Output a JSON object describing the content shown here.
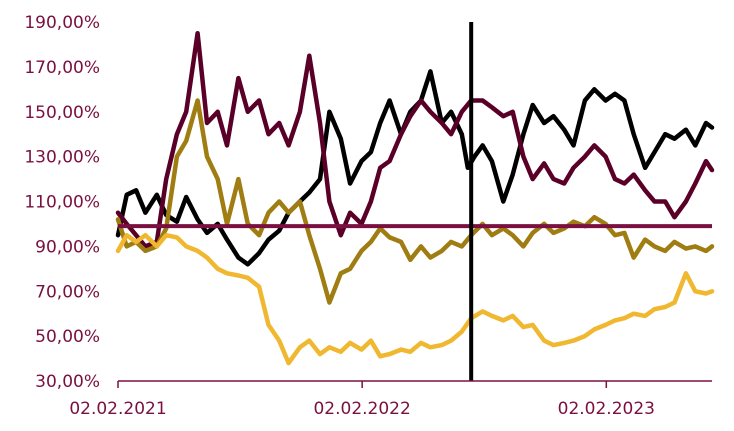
{
  "chart_data": {
    "type": "line",
    "title": "",
    "xlabel": "",
    "ylabel": "",
    "x_range": [
      "2021-02-02",
      "2023-07-10"
    ],
    "ylim": [
      30,
      190
    ],
    "y_ticks": [
      {
        "value": 190,
        "label": "190,00%"
      },
      {
        "value": 170,
        "label": "170,00%"
      },
      {
        "value": 150,
        "label": "150,00%"
      },
      {
        "value": 130,
        "label": "130,00%"
      },
      {
        "value": 110,
        "label": "110,00%"
      },
      {
        "value": 90,
        "label": "90,00%"
      },
      {
        "value": 70,
        "label": "70,00%"
      },
      {
        "value": 50,
        "label": "50,00%"
      },
      {
        "value": 30,
        "label": "30,00%"
      }
    ],
    "x_ticks": [
      {
        "date": "2021-02-02",
        "label": "02.02.2021"
      },
      {
        "date": "2022-02-02",
        "label": "02.02.2022"
      },
      {
        "date": "2023-02-02",
        "label": "02.02.2023"
      }
    ],
    "reference_lines": [
      {
        "orientation": "horizontal",
        "value": 99,
        "color": "#7a1040"
      },
      {
        "orientation": "vertical",
        "date": "2022-07-15",
        "color": "#000000"
      }
    ],
    "grid": false,
    "legend": "none",
    "series": [
      {
        "color": "#000000",
        "points": [
          [
            "2021-02-02",
            95
          ],
          [
            "2021-02-15",
            113
          ],
          [
            "2021-03-01",
            115
          ],
          [
            "2021-03-15",
            105
          ],
          [
            "2021-04-01",
            113
          ],
          [
            "2021-04-15",
            104
          ],
          [
            "2021-05-01",
            101
          ],
          [
            "2021-05-15",
            112
          ],
          [
            "2021-06-01",
            102
          ],
          [
            "2021-06-15",
            96
          ],
          [
            "2021-07-01",
            100
          ],
          [
            "2021-07-15",
            93
          ],
          [
            "2021-08-01",
            85
          ],
          [
            "2021-08-15",
            82
          ],
          [
            "2021-09-01",
            87
          ],
          [
            "2021-09-15",
            93
          ],
          [
            "2021-10-01",
            97
          ],
          [
            "2021-10-15",
            105
          ],
          [
            "2021-11-01",
            110
          ],
          [
            "2021-11-15",
            114
          ],
          [
            "2021-12-01",
            120
          ],
          [
            "2021-12-15",
            150
          ],
          [
            "2022-01-01",
            138
          ],
          [
            "2022-01-15",
            118
          ],
          [
            "2022-02-01",
            128
          ],
          [
            "2022-02-15",
            132
          ],
          [
            "2022-03-01",
            145
          ],
          [
            "2022-03-15",
            155
          ],
          [
            "2022-04-01",
            140
          ],
          [
            "2022-04-15",
            150
          ],
          [
            "2022-05-01",
            155
          ],
          [
            "2022-05-15",
            168
          ],
          [
            "2022-06-01",
            145
          ],
          [
            "2022-06-15",
            150
          ],
          [
            "2022-07-01",
            140
          ],
          [
            "2022-07-10",
            125
          ],
          [
            "2022-07-20",
            130
          ],
          [
            "2022-08-01",
            135
          ],
          [
            "2022-08-15",
            128
          ],
          [
            "2022-09-01",
            110
          ],
          [
            "2022-09-15",
            122
          ],
          [
            "2022-10-01",
            140
          ],
          [
            "2022-10-15",
            153
          ],
          [
            "2022-11-01",
            145
          ],
          [
            "2022-11-15",
            148
          ],
          [
            "2022-12-01",
            142
          ],
          [
            "2022-12-15",
            135
          ],
          [
            "2023-01-01",
            155
          ],
          [
            "2023-01-15",
            160
          ],
          [
            "2023-02-01",
            155
          ],
          [
            "2023-02-15",
            158
          ],
          [
            "2023-03-01",
            155
          ],
          [
            "2023-03-15",
            140
          ],
          [
            "2023-04-01",
            125
          ],
          [
            "2023-04-15",
            132
          ],
          [
            "2023-05-01",
            140
          ],
          [
            "2023-05-15",
            138
          ],
          [
            "2023-06-01",
            142
          ],
          [
            "2023-06-15",
            135
          ],
          [
            "2023-07-01",
            145
          ],
          [
            "2023-07-10",
            143
          ]
        ]
      },
      {
        "color": "#5a0028",
        "points": [
          [
            "2021-02-02",
            105
          ],
          [
            "2021-02-15",
            100
          ],
          [
            "2021-03-01",
            95
          ],
          [
            "2021-03-15",
            90
          ],
          [
            "2021-04-01",
            92
          ],
          [
            "2021-04-15",
            120
          ],
          [
            "2021-05-01",
            140
          ],
          [
            "2021-05-15",
            150
          ],
          [
            "2021-06-01",
            185
          ],
          [
            "2021-06-15",
            145
          ],
          [
            "2021-07-01",
            150
          ],
          [
            "2021-07-15",
            135
          ],
          [
            "2021-08-01",
            165
          ],
          [
            "2021-08-15",
            150
          ],
          [
            "2021-09-01",
            155
          ],
          [
            "2021-09-15",
            140
          ],
          [
            "2021-10-01",
            145
          ],
          [
            "2021-10-15",
            135
          ],
          [
            "2021-11-01",
            150
          ],
          [
            "2021-11-15",
            175
          ],
          [
            "2021-12-01",
            145
          ],
          [
            "2021-12-15",
            110
          ],
          [
            "2022-01-01",
            95
          ],
          [
            "2022-01-15",
            105
          ],
          [
            "2022-02-01",
            100
          ],
          [
            "2022-02-15",
            110
          ],
          [
            "2022-03-01",
            125
          ],
          [
            "2022-03-15",
            128
          ],
          [
            "2022-04-01",
            140
          ],
          [
            "2022-04-15",
            148
          ],
          [
            "2022-05-01",
            155
          ],
          [
            "2022-05-15",
            150
          ],
          [
            "2022-06-01",
            145
          ],
          [
            "2022-06-15",
            140
          ],
          [
            "2022-07-01",
            150
          ],
          [
            "2022-07-15",
            155
          ],
          [
            "2022-08-01",
            155
          ],
          [
            "2022-08-15",
            152
          ],
          [
            "2022-09-01",
            148
          ],
          [
            "2022-09-15",
            150
          ],
          [
            "2022-10-01",
            130
          ],
          [
            "2022-10-15",
            120
          ],
          [
            "2022-11-01",
            127
          ],
          [
            "2022-11-15",
            120
          ],
          [
            "2022-12-01",
            118
          ],
          [
            "2022-12-15",
            125
          ],
          [
            "2023-01-01",
            130
          ],
          [
            "2023-01-15",
            135
          ],
          [
            "2023-02-01",
            130
          ],
          [
            "2023-02-15",
            120
          ],
          [
            "2023-03-01",
            118
          ],
          [
            "2023-03-15",
            122
          ],
          [
            "2023-04-01",
            115
          ],
          [
            "2023-04-15",
            110
          ],
          [
            "2023-05-01",
            110
          ],
          [
            "2023-05-15",
            103
          ],
          [
            "2023-06-01",
            110
          ],
          [
            "2023-06-15",
            118
          ],
          [
            "2023-07-01",
            128
          ],
          [
            "2023-07-10",
            124
          ]
        ]
      },
      {
        "color": "#a07d12",
        "points": [
          [
            "2021-02-02",
            102
          ],
          [
            "2021-02-15",
            90
          ],
          [
            "2021-03-01",
            92
          ],
          [
            "2021-03-15",
            88
          ],
          [
            "2021-04-01",
            90
          ],
          [
            "2021-04-15",
            98
          ],
          [
            "2021-05-01",
            130
          ],
          [
            "2021-05-15",
            137
          ],
          [
            "2021-06-01",
            155
          ],
          [
            "2021-06-15",
            130
          ],
          [
            "2021-07-01",
            120
          ],
          [
            "2021-07-15",
            100
          ],
          [
            "2021-08-01",
            120
          ],
          [
            "2021-08-15",
            100
          ],
          [
            "2021-09-01",
            95
          ],
          [
            "2021-09-15",
            105
          ],
          [
            "2021-10-01",
            110
          ],
          [
            "2021-10-15",
            105
          ],
          [
            "2021-11-01",
            110
          ],
          [
            "2021-11-15",
            95
          ],
          [
            "2021-12-01",
            80
          ],
          [
            "2021-12-15",
            65
          ],
          [
            "2022-01-01",
            78
          ],
          [
            "2022-01-15",
            80
          ],
          [
            "2022-02-01",
            88
          ],
          [
            "2022-02-15",
            92
          ],
          [
            "2022-03-01",
            98
          ],
          [
            "2022-03-15",
            94
          ],
          [
            "2022-04-01",
            92
          ],
          [
            "2022-04-15",
            84
          ],
          [
            "2022-05-01",
            90
          ],
          [
            "2022-05-15",
            85
          ],
          [
            "2022-06-01",
            88
          ],
          [
            "2022-06-15",
            92
          ],
          [
            "2022-07-01",
            90
          ],
          [
            "2022-07-15",
            95
          ],
          [
            "2022-08-01",
            100
          ],
          [
            "2022-08-15",
            95
          ],
          [
            "2022-09-01",
            98
          ],
          [
            "2022-09-15",
            95
          ],
          [
            "2022-10-01",
            90
          ],
          [
            "2022-10-15",
            96
          ],
          [
            "2022-11-01",
            100
          ],
          [
            "2022-11-15",
            96
          ],
          [
            "2022-12-01",
            98
          ],
          [
            "2022-12-15",
            101
          ],
          [
            "2023-01-01",
            99
          ],
          [
            "2023-01-15",
            103
          ],
          [
            "2023-02-01",
            100
          ],
          [
            "2023-02-15",
            95
          ],
          [
            "2023-03-01",
            96
          ],
          [
            "2023-03-15",
            85
          ],
          [
            "2023-04-01",
            93
          ],
          [
            "2023-04-15",
            90
          ],
          [
            "2023-05-01",
            88
          ],
          [
            "2023-05-15",
            92
          ],
          [
            "2023-06-01",
            89
          ],
          [
            "2023-06-15",
            90
          ],
          [
            "2023-07-01",
            88
          ],
          [
            "2023-07-10",
            90
          ]
        ]
      },
      {
        "color": "#f0b830",
        "points": [
          [
            "2021-02-02",
            88
          ],
          [
            "2021-02-15",
            95
          ],
          [
            "2021-03-01",
            92
          ],
          [
            "2021-03-15",
            95
          ],
          [
            "2021-04-01",
            90
          ],
          [
            "2021-04-15",
            95
          ],
          [
            "2021-05-01",
            94
          ],
          [
            "2021-05-15",
            90
          ],
          [
            "2021-06-01",
            88
          ],
          [
            "2021-06-15",
            85
          ],
          [
            "2021-07-01",
            80
          ],
          [
            "2021-07-15",
            78
          ],
          [
            "2021-08-01",
            77
          ],
          [
            "2021-08-15",
            76
          ],
          [
            "2021-09-01",
            72
          ],
          [
            "2021-09-15",
            55
          ],
          [
            "2021-10-01",
            48
          ],
          [
            "2021-10-15",
            38
          ],
          [
            "2021-11-01",
            45
          ],
          [
            "2021-11-15",
            48
          ],
          [
            "2021-12-01",
            42
          ],
          [
            "2021-12-15",
            45
          ],
          [
            "2022-01-01",
            43
          ],
          [
            "2022-01-15",
            47
          ],
          [
            "2022-02-01",
            44
          ],
          [
            "2022-02-15",
            48
          ],
          [
            "2022-03-01",
            41
          ],
          [
            "2022-03-15",
            42
          ],
          [
            "2022-04-01",
            44
          ],
          [
            "2022-04-15",
            43
          ],
          [
            "2022-05-01",
            47
          ],
          [
            "2022-05-15",
            45
          ],
          [
            "2022-06-01",
            46
          ],
          [
            "2022-06-15",
            48
          ],
          [
            "2022-07-01",
            52
          ],
          [
            "2022-07-15",
            58
          ],
          [
            "2022-08-01",
            61
          ],
          [
            "2022-08-15",
            59
          ],
          [
            "2022-09-01",
            57
          ],
          [
            "2022-09-15",
            59
          ],
          [
            "2022-10-01",
            54
          ],
          [
            "2022-10-15",
            55
          ],
          [
            "2022-11-01",
            48
          ],
          [
            "2022-11-15",
            46
          ],
          [
            "2022-12-01",
            47
          ],
          [
            "2022-12-15",
            48
          ],
          [
            "2023-01-01",
            50
          ],
          [
            "2023-01-15",
            53
          ],
          [
            "2023-02-01",
            55
          ],
          [
            "2023-02-15",
            57
          ],
          [
            "2023-03-01",
            58
          ],
          [
            "2023-03-15",
            60
          ],
          [
            "2023-04-01",
            59
          ],
          [
            "2023-04-15",
            62
          ],
          [
            "2023-05-01",
            63
          ],
          [
            "2023-05-15",
            65
          ],
          [
            "2023-06-01",
            78
          ],
          [
            "2023-06-15",
            70
          ],
          [
            "2023-07-01",
            69
          ],
          [
            "2023-07-10",
            70
          ]
        ]
      }
    ]
  }
}
